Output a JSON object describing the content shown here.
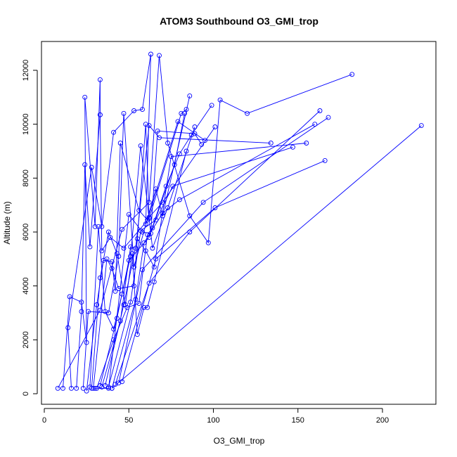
{
  "chart_data": {
    "type": "line",
    "title": "ATOM3 Southbound O3_GMI_trop",
    "xlabel": "O3_GMI_trop",
    "ylabel": "Altitude (m)",
    "xlim": [
      0,
      235
    ],
    "ylim": [
      -300,
      13000
    ],
    "xticks": [
      0,
      50,
      100,
      150,
      200
    ],
    "yticks": [
      0,
      2000,
      4000,
      6000,
      8000,
      10000,
      12000
    ],
    "xtick_labels": [
      "0",
      "50",
      "100",
      "150",
      "200"
    ],
    "ytick_labels": [
      "0",
      "2000",
      "4000",
      "6000",
      "8000",
      "10000",
      "12000"
    ],
    "grid": false,
    "color": "#0000ff",
    "marker": "open-circle",
    "series": [
      {
        "x": [
          8,
          33,
          46,
          62,
          68,
          73,
          86,
          97,
          104,
          120,
          182
        ],
        "y": [
          200,
          3100,
          6100,
          7100,
          12550,
          9300,
          6600,
          5600,
          10900,
          10400,
          11850
        ]
      },
      {
        "x": [
          11,
          15,
          22,
          25,
          24,
          30,
          33,
          33
        ],
        "y": [
          200,
          3600,
          3400,
          1900,
          11000,
          6200,
          11650,
          10350
        ]
      },
      {
        "x": [
          16,
          14,
          28,
          34,
          41,
          53,
          58,
          63,
          60
        ],
        "y": [
          200,
          2450,
          8400,
          6200,
          9700,
          10500,
          10550,
          12600,
          6300
        ]
      },
      {
        "x": [
          19,
          22,
          24,
          27,
          33,
          34,
          39,
          47,
          62,
          81,
          84
        ],
        "y": [
          200,
          3050,
          8500,
          5450,
          10350,
          5300,
          5800,
          5400,
          6500,
          10400,
          10550
        ]
      },
      {
        "x": [
          23,
          26,
          38,
          44,
          47,
          53,
          66,
          70,
          86
        ],
        "y": [
          200,
          3050,
          3000,
          5100,
          10400,
          4700,
          7600,
          6600,
          11050
        ]
      },
      {
        "x": [
          25,
          31,
          35,
          40,
          42,
          45,
          56,
          61,
          79,
          95
        ],
        "y": [
          100,
          3300,
          4950,
          4900,
          3800,
          9300,
          6800,
          6450,
          10100,
          9400
        ]
      },
      {
        "x": [
          27,
          32,
          36,
          41,
          46,
          51,
          57,
          64,
          73,
          89
        ],
        "y": [
          250,
          6200,
          3050,
          2400,
          3700,
          5100,
          9200,
          5400,
          6900,
          9900
        ]
      },
      {
        "x": [
          28,
          33,
          38,
          43,
          48,
          52,
          55,
          59,
          61,
          65,
          84
        ],
        "y": [
          200,
          4300,
          6000,
          5200,
          3300,
          5200,
          2200,
          3200,
          3200,
          4150,
          9000
        ]
      },
      {
        "x": [
          29,
          37,
          40,
          44,
          53,
          60,
          62,
          70,
          101
        ],
        "y": [
          200,
          5000,
          4650,
          3900,
          4000,
          10000,
          6550,
          7100,
          9900
        ]
      },
      {
        "x": [
          30,
          38,
          50,
          58,
          63,
          67,
          89,
          93
        ],
        "y": [
          200,
          200,
          6650,
          6000,
          5950,
          9750,
          9650,
          9250
        ]
      },
      {
        "x": [
          31,
          41,
          49,
          56,
          61,
          64,
          77,
          83
        ],
        "y": [
          200,
          2000,
          3200,
          3350,
          5900,
          6150,
          8500,
          10400
        ]
      },
      {
        "x": [
          33,
          43,
          50,
          62,
          72,
          80,
          87,
          99
        ],
        "y": [
          300,
          2800,
          4950,
          5800,
          7700,
          8900,
          9600,
          10700
        ]
      },
      {
        "x": [
          34,
          45,
          51,
          54,
          62,
          68,
          134
        ],
        "y": [
          250,
          2700,
          5450,
          5400,
          9950,
          9500,
          9300
        ]
      },
      {
        "x": [
          36,
          47,
          55,
          60,
          65,
          75,
          155
        ],
        "y": [
          300,
          3300,
          5750,
          5300,
          4700,
          8800,
          9300
        ]
      },
      {
        "x": [
          38,
          51,
          57,
          66,
          76,
          147
        ],
        "y": [
          250,
          3400,
          6050,
          6450,
          7700,
          9150
        ]
      },
      {
        "x": [
          40,
          54,
          59,
          70,
          80,
          160
        ],
        "y": [
          200,
          3500,
          5600,
          6700,
          7200,
          10000
        ]
      },
      {
        "x": [
          42,
          62,
          86,
          163
        ],
        "y": [
          350,
          4100,
          6000,
          10500
        ]
      },
      {
        "x": [
          44,
          58,
          94,
          168
        ],
        "y": [
          400,
          4600,
          7100,
          10250
        ]
      },
      {
        "x": [
          46,
          66,
          101,
          166
        ],
        "y": [
          450,
          5000,
          6900,
          8650
        ]
      },
      {
        "x": [
          40,
          223
        ],
        "y": [
          200,
          9950
        ]
      }
    ]
  }
}
